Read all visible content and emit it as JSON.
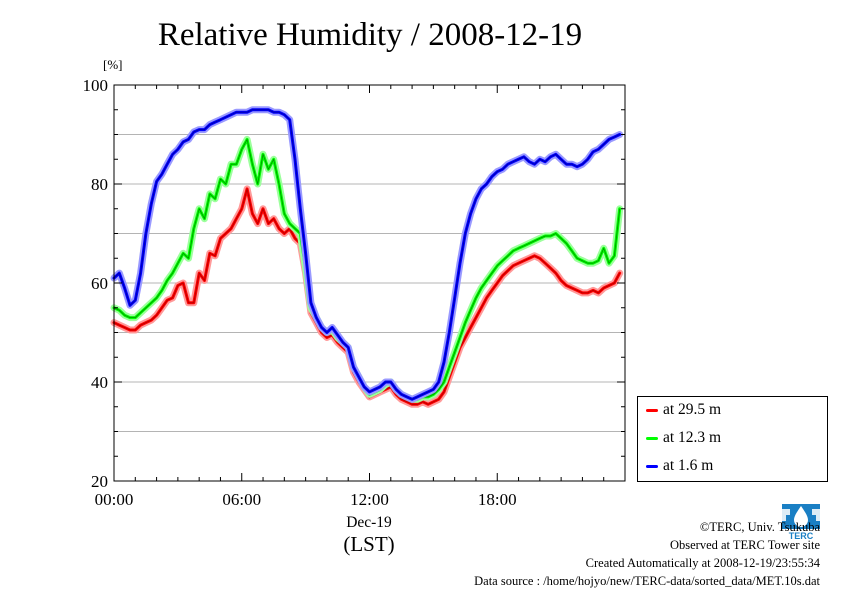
{
  "chart_data": {
    "type": "line",
    "title": "Relative Humidity / 2008-12-19",
    "ylabel": "[%]",
    "xlabel": "(LST)",
    "date_label": "Dec-19",
    "ylim": [
      20,
      100
    ],
    "xlim": [
      0,
      24
    ],
    "xticks": [
      0,
      6,
      12,
      18
    ],
    "xtick_labels": [
      "00:00",
      "06:00",
      "12:00",
      "18:00"
    ],
    "yticks": [
      20,
      40,
      60,
      80,
      100
    ],
    "ytick_labels": [
      "20",
      "40",
      "60",
      "80",
      "100"
    ],
    "grid": true,
    "legend_position": "bottom-right-outside",
    "series": [
      {
        "name": "at 29.5 m",
        "color": "#ff0000",
        "x": [
          0,
          0.25,
          0.5,
          0.75,
          1,
          1.25,
          1.5,
          1.75,
          2,
          2.25,
          2.5,
          2.75,
          3,
          3.25,
          3.5,
          3.75,
          4,
          4.25,
          4.5,
          4.75,
          5,
          5.25,
          5.5,
          5.75,
          6,
          6.25,
          6.5,
          6.75,
          7,
          7.25,
          7.5,
          7.75,
          8,
          8.25,
          8.5,
          8.75,
          9,
          9.25,
          9.5,
          9.75,
          10,
          10.25,
          10.5,
          10.75,
          11,
          11.25,
          11.5,
          11.75,
          12,
          12.25,
          12.5,
          12.75,
          13,
          13.25,
          13.5,
          13.75,
          14,
          14.25,
          14.5,
          14.75,
          15,
          15.25,
          15.5,
          15.75,
          16,
          16.25,
          16.5,
          16.75,
          17,
          17.25,
          17.5,
          17.75,
          18,
          18.25,
          18.5,
          18.75,
          19,
          19.25,
          19.5,
          19.75,
          20,
          20.25,
          20.5,
          20.75,
          21,
          21.25,
          21.5,
          21.75,
          22,
          22.25,
          22.5,
          22.75,
          23,
          23.25,
          23.5,
          23.75
        ],
        "values": [
          52,
          51.5,
          51,
          50.5,
          50.5,
          51.5,
          52,
          52.5,
          53.5,
          55,
          56.5,
          57,
          59.5,
          60,
          56,
          56,
          62,
          60.5,
          66,
          65.5,
          69,
          70,
          71,
          73,
          75,
          79,
          74,
          72,
          75,
          72,
          73,
          71,
          70,
          71,
          69,
          68,
          62,
          54,
          52,
          50,
          49,
          49.5,
          48,
          47,
          46,
          42,
          40,
          38.5,
          37,
          37.5,
          38,
          38.5,
          39,
          37.5,
          36.5,
          36,
          35.5,
          35.5,
          36,
          35.5,
          36,
          36.5,
          38,
          41,
          44,
          47,
          49,
          51,
          53,
          55,
          57,
          58.5,
          60,
          61.5,
          62.5,
          63.5,
          64,
          64.5,
          65,
          65.5,
          65,
          64,
          63,
          62,
          60.5,
          59.5,
          59,
          58.5,
          58,
          58,
          58.5,
          58,
          59,
          59.5,
          60,
          62
        ]
      },
      {
        "name": "at 12.3 m",
        "color": "#00ff00",
        "x": [
          0,
          0.25,
          0.5,
          0.75,
          1,
          1.25,
          1.5,
          1.75,
          2,
          2.25,
          2.5,
          2.75,
          3,
          3.25,
          3.5,
          3.75,
          4,
          4.25,
          4.5,
          4.75,
          5,
          5.25,
          5.5,
          5.75,
          6,
          6.25,
          6.5,
          6.75,
          7,
          7.25,
          7.5,
          7.75,
          8,
          8.25,
          8.5,
          8.75,
          9,
          9.25,
          9.5,
          9.75,
          10,
          10.25,
          10.5,
          10.75,
          11,
          11.25,
          11.5,
          11.75,
          12,
          12.25,
          12.5,
          12.75,
          13,
          13.25,
          13.5,
          13.75,
          14,
          14.25,
          14.5,
          14.75,
          15,
          15.25,
          15.5,
          15.75,
          16,
          16.25,
          16.5,
          16.75,
          17,
          17.25,
          17.5,
          17.75,
          18,
          18.25,
          18.5,
          18.75,
          19,
          19.25,
          19.5,
          19.75,
          20,
          20.25,
          20.5,
          20.75,
          21,
          21.25,
          21.5,
          21.75,
          22,
          22.25,
          22.5,
          22.75,
          23,
          23.25,
          23.5,
          23.75
        ],
        "values": [
          55,
          54.5,
          53.5,
          53,
          53,
          54,
          55,
          56,
          57,
          58.5,
          60.5,
          62,
          64,
          66,
          65,
          71,
          75,
          73,
          78,
          77,
          81,
          80,
          84,
          84,
          87,
          89,
          84,
          80,
          86,
          83,
          85,
          80,
          74,
          72,
          71,
          70,
          63,
          55,
          53,
          51,
          50,
          50.5,
          49,
          48,
          47,
          43,
          41,
          39,
          37.5,
          38,
          38.5,
          39.5,
          40,
          38.5,
          37.5,
          37,
          36.5,
          36.5,
          37,
          37,
          37.5,
          38.5,
          40,
          43,
          46,
          49,
          52,
          54.5,
          57,
          59,
          60.5,
          62,
          63.5,
          64.5,
          65.5,
          66.5,
          67,
          67.5,
          68,
          68.5,
          69,
          69.5,
          69.5,
          70,
          69,
          68,
          66.5,
          65,
          64.5,
          64,
          64,
          64.5,
          67,
          64,
          65.5,
          75
        ]
      },
      {
        "name": "at 1.6 m",
        "color": "#0000ff",
        "x": [
          0,
          0.25,
          0.5,
          0.75,
          1,
          1.25,
          1.5,
          1.75,
          2,
          2.25,
          2.5,
          2.75,
          3,
          3.25,
          3.5,
          3.75,
          4,
          4.25,
          4.5,
          4.75,
          5,
          5.25,
          5.5,
          5.75,
          6,
          6.25,
          6.5,
          6.75,
          7,
          7.25,
          7.5,
          7.75,
          8,
          8.25,
          8.5,
          8.75,
          9,
          9.25,
          9.5,
          9.75,
          10,
          10.25,
          10.5,
          10.75,
          11,
          11.25,
          11.5,
          11.75,
          12,
          12.25,
          12.5,
          12.75,
          13,
          13.25,
          13.5,
          13.75,
          14,
          14.25,
          14.5,
          14.75,
          15,
          15.25,
          15.5,
          15.75,
          16,
          16.25,
          16.5,
          16.75,
          17,
          17.25,
          17.5,
          17.75,
          18,
          18.25,
          18.5,
          18.75,
          19,
          19.25,
          19.5,
          19.75,
          20,
          20.25,
          20.5,
          20.75,
          21,
          21.25,
          21.5,
          21.75,
          22,
          22.25,
          22.5,
          22.75,
          23,
          23.25,
          23.5,
          23.75
        ],
        "values": [
          61,
          62,
          59,
          55.5,
          56.5,
          62,
          70,
          76,
          80.5,
          82,
          84,
          86,
          87,
          88.5,
          89,
          90.5,
          91,
          91,
          92,
          92.5,
          93,
          93.5,
          94,
          94.5,
          94.5,
          94.5,
          95,
          95,
          95,
          95,
          94.5,
          94.5,
          94,
          93,
          85,
          75,
          66,
          56,
          53,
          51,
          50,
          51,
          49.5,
          48,
          47,
          43,
          41,
          39,
          38,
          38.5,
          39,
          40,
          40,
          38.5,
          37.5,
          37,
          36.5,
          37,
          37.5,
          38,
          38.5,
          40,
          44,
          50,
          57,
          64,
          70,
          74,
          77,
          79,
          80,
          81.5,
          82.5,
          83,
          84,
          84.5,
          85,
          85.5,
          84.5,
          84,
          85,
          84.5,
          85.5,
          86,
          85,
          84,
          84,
          83.5,
          84,
          85,
          86.5,
          87,
          88,
          89,
          89.5,
          90
        ]
      }
    ]
  },
  "footer": {
    "copyright": "©TERC, Univ. Tsukuba",
    "observed": "Observed at TERC Tower site",
    "created": "Created Automatically at 2008-12-19/23:55:34",
    "source": "Data source : /home/hojyo/new/TERC-data/sorted_data/MET.10s.dat"
  },
  "logo": {
    "icon": "terc-logo",
    "text": "TERC",
    "color": "#1a7fc4"
  }
}
